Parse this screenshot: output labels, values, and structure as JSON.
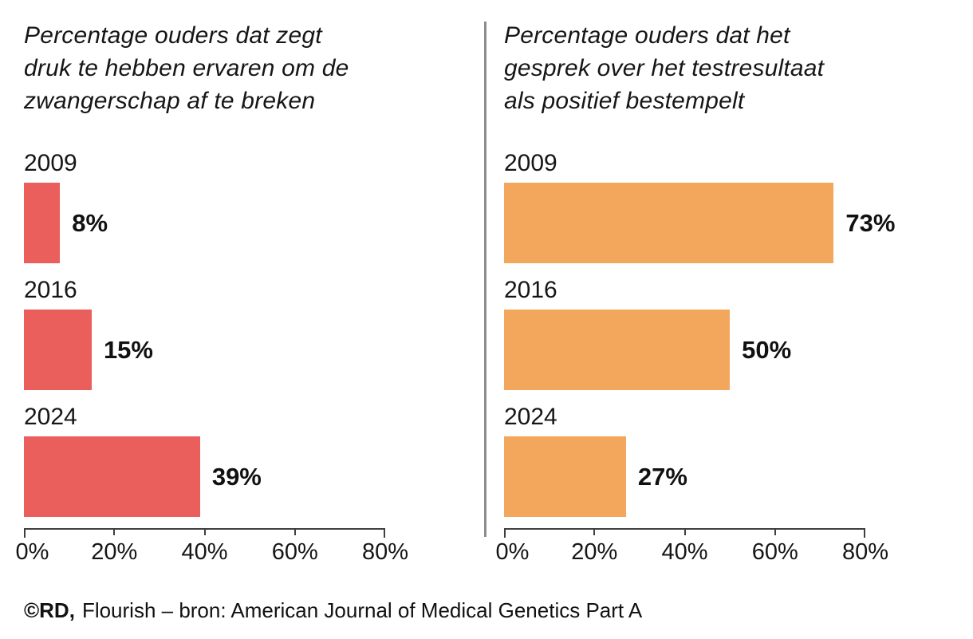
{
  "footer": {
    "copyright": "©RD,",
    "source": "Flourish – bron: American Journal of Medical Genetics Part A"
  },
  "layout": {
    "divider_color": "#8c8c8c",
    "background": "#ffffff",
    "axis_color": "#3f3f3f"
  },
  "chart_data": [
    {
      "type": "bar",
      "orientation": "horizontal",
      "title": "Percentage ouders dat zegt\ndruk te hebben ervaren om de\nzwangerschap af te breken",
      "categories": [
        "2009",
        "2016",
        "2024"
      ],
      "values": [
        8,
        15,
        39
      ],
      "value_labels": [
        "8%",
        "15%",
        "39%"
      ],
      "bar_color": "#ea5e5b",
      "xlim": [
        0,
        80
      ],
      "x_ticks": [
        "0%",
        "20%",
        "40%",
        "60%",
        "80%"
      ],
      "grid": false,
      "legend": "none"
    },
    {
      "type": "bar",
      "orientation": "horizontal",
      "title": "Percentage ouders dat het\ngesprek over het testresultaat\nals positief bestempelt",
      "categories": [
        "2009",
        "2016",
        "2024"
      ],
      "values": [
        73,
        50,
        27
      ],
      "value_labels": [
        "73%",
        "50%",
        "27%"
      ],
      "bar_color": "#f3a75d",
      "xlim": [
        0,
        80
      ],
      "x_ticks": [
        "0%",
        "20%",
        "40%",
        "60%",
        "80%"
      ],
      "grid": false,
      "legend": "none"
    }
  ]
}
